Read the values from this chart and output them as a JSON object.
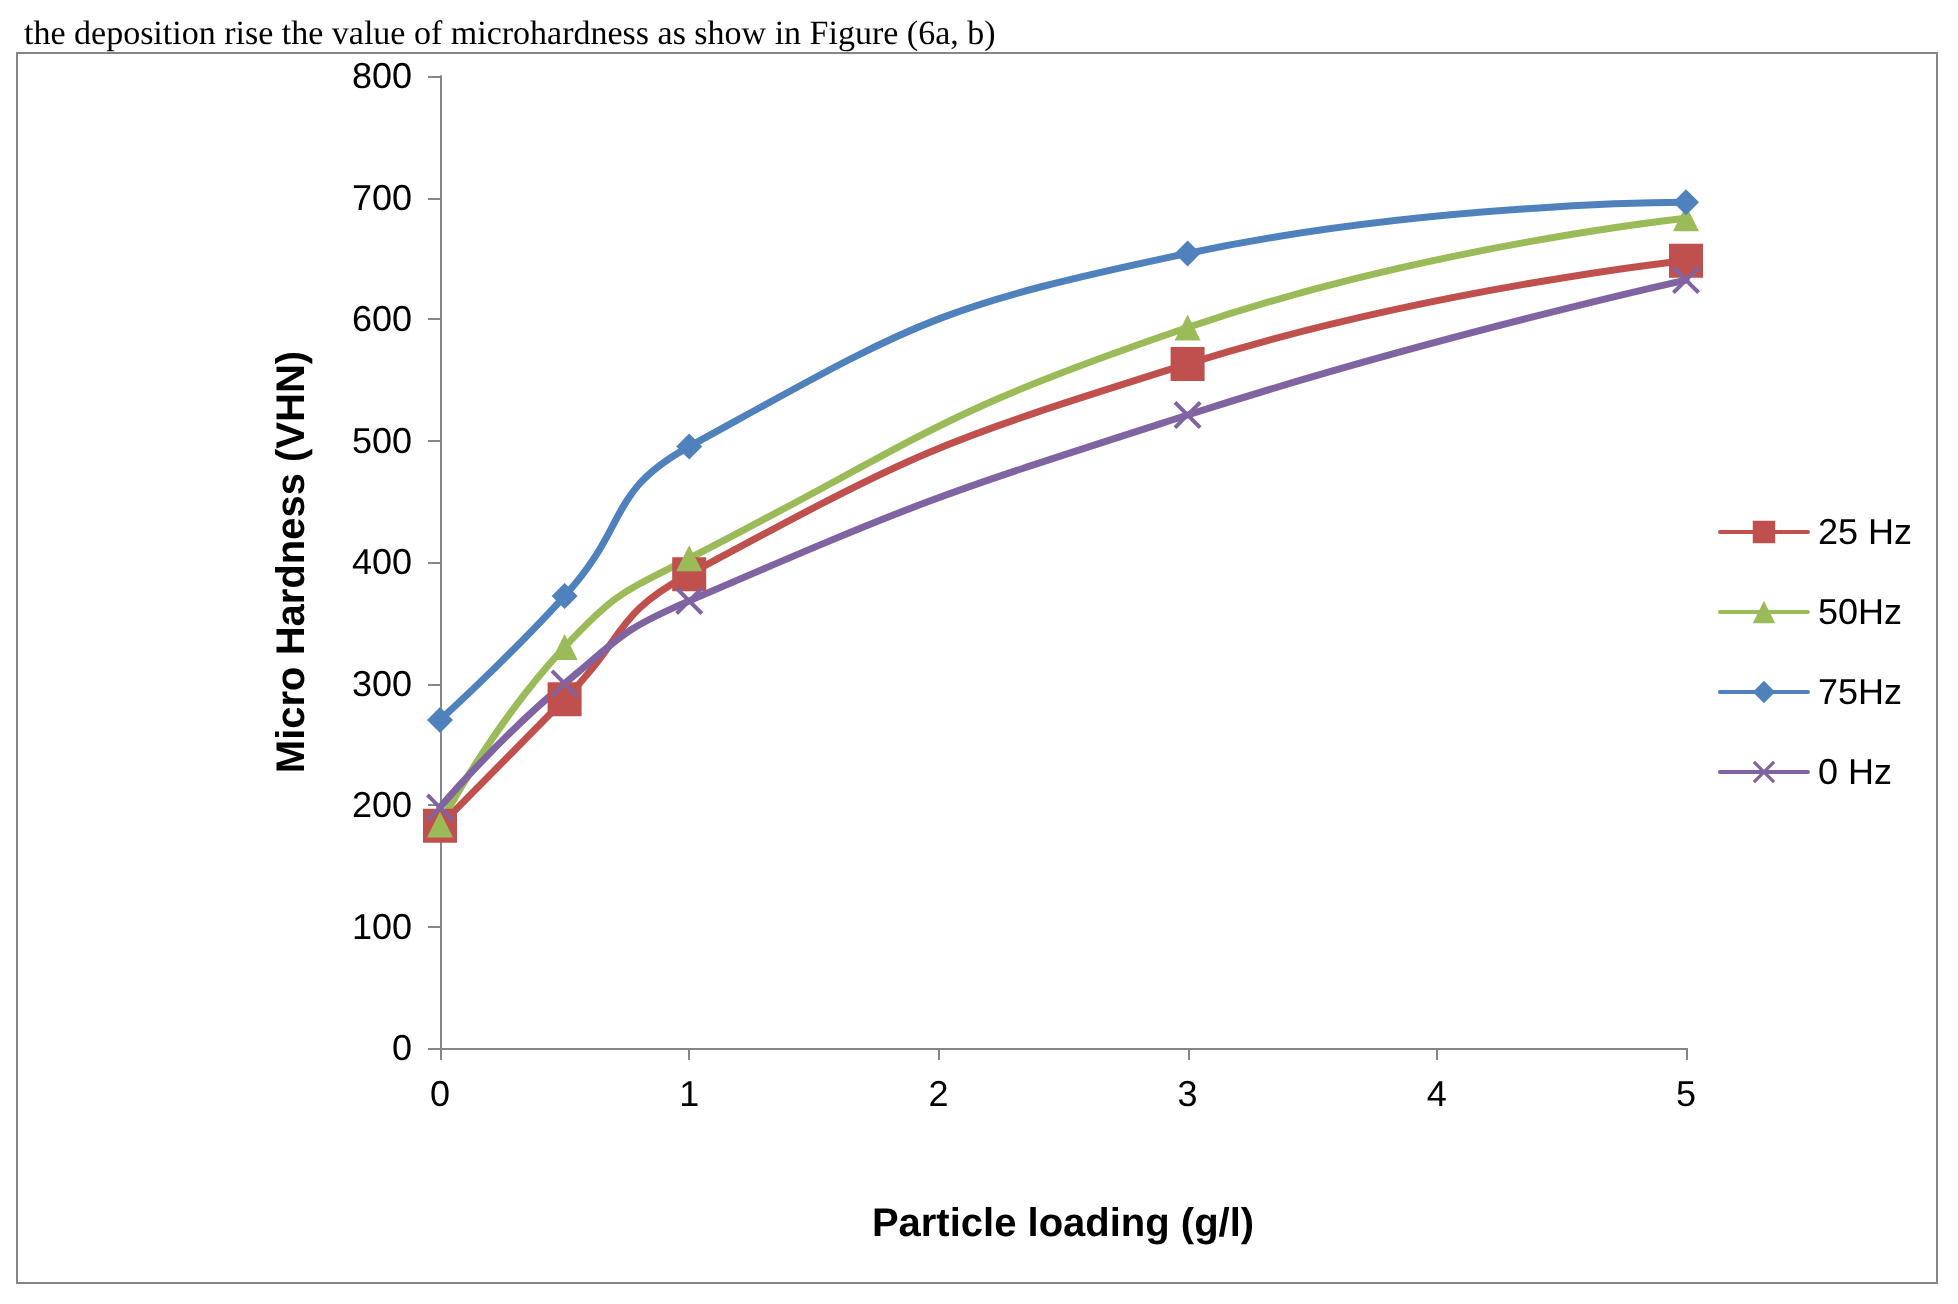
{
  "chart_data": {
    "type": "line",
    "xlabel": "Particle loading (g/l)",
    "ylabel": "Micro Hardness (VHN)",
    "annotations": [
      "the deposition rise the value of microhardness as show in Figure (6a, b)"
    ],
    "x": [
      0,
      0.5,
      1,
      3,
      5
    ],
    "series": [
      {
        "name": "25 Hz",
        "color": "#c0504d",
        "marker": "square",
        "values": [
          183,
          287,
          390,
          563,
          648
        ]
      },
      {
        "name": "50Hz",
        "color": "#9bbb59",
        "marker": "triangle",
        "values": [
          184,
          330,
          403,
          593,
          683
        ]
      },
      {
        "name": "75Hz",
        "color": "#4f81bd",
        "marker": "diamond",
        "values": [
          270,
          372,
          495,
          654,
          696
        ]
      },
      {
        "name": "0 Hz",
        "color": "#8064a2",
        "marker": "cross",
        "values": [
          198,
          300,
          368,
          521,
          632
        ]
      }
    ],
    "xlim": [
      0,
      5
    ],
    "xticks": [
      0,
      1,
      2,
      3,
      4,
      5
    ],
    "ylim": [
      0,
      800
    ],
    "yticks": [
      0,
      100,
      200,
      300,
      400,
      500,
      600,
      700,
      800
    ],
    "grid": false,
    "legend": "right",
    "line_style": "solid"
  }
}
